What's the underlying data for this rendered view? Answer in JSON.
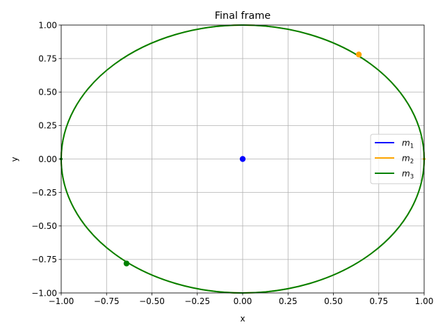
{
  "chart_data": {
    "type": "line",
    "title": "Final frame",
    "xlabel": "x",
    "ylabel": "y",
    "xlim": [
      -1.0,
      1.0
    ],
    "ylim": [
      -1.0,
      1.0
    ],
    "grid": true,
    "x_ticks": [
      -1.0,
      -0.75,
      -0.5,
      -0.25,
      0.0,
      0.25,
      0.5,
      0.75,
      1.0
    ],
    "x_tick_labels": [
      "−1.00",
      "−0.75",
      "−0.50",
      "−0.25",
      "0.00",
      "0.25",
      "0.50",
      "0.75",
      "1.00"
    ],
    "y_ticks": [
      1.0,
      0.75,
      0.5,
      0.25,
      0.0,
      -0.25,
      -0.5,
      -0.75,
      -1.0
    ],
    "y_tick_labels": [
      "1.00",
      "0.75",
      "0.50",
      "0.25",
      "0.00",
      "−0.25",
      "−0.50",
      "−0.75",
      "−1.00"
    ],
    "legend": {
      "placement": "center-right",
      "entries": [
        {
          "base": "m",
          "sub": "1",
          "color": "#0000ff"
        },
        {
          "base": "m",
          "sub": "2",
          "color": "#ffa500"
        },
        {
          "base": "m",
          "sub": "3",
          "color": "#008000"
        }
      ]
    },
    "series": [
      {
        "color": "#0000ff",
        "orbit": "point",
        "center": [
          0.0,
          0.0
        ],
        "radius": 0.0,
        "current_position": [
          0.0,
          0.0
        ]
      },
      {
        "color": "#ffa500",
        "orbit": "circle",
        "center": [
          0.0,
          0.0
        ],
        "radius": 1.0,
        "current_position": [
          0.64,
          0.78
        ]
      },
      {
        "color": "#008000",
        "orbit": "circle",
        "center": [
          0.0,
          0.0
        ],
        "radius": 1.0,
        "current_position": [
          -0.64,
          -0.78
        ]
      }
    ]
  }
}
